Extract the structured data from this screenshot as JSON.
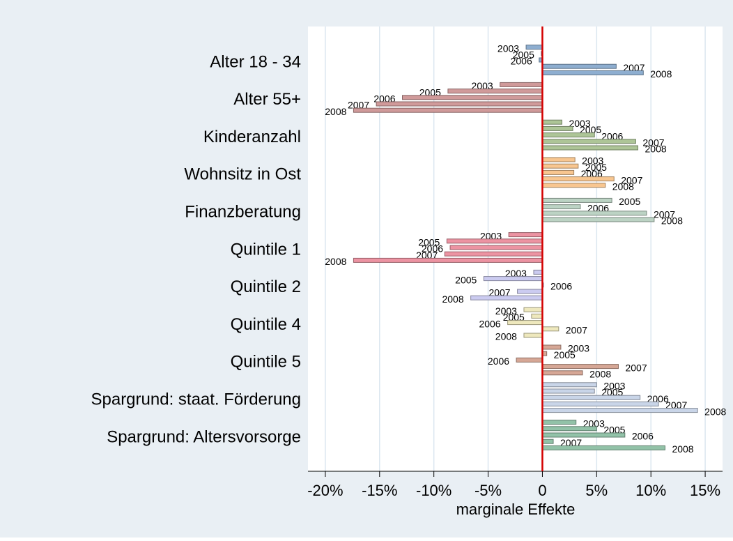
{
  "chart_data": {
    "type": "hbar-grouped",
    "xlabel": "marginale Effekte",
    "xlim": [
      -21.6,
      16.6
    ],
    "xticks": [
      {
        "value": -20,
        "label": "-20%"
      },
      {
        "value": -15,
        "label": "-15%"
      },
      {
        "value": -10,
        "label": "-10%"
      },
      {
        "value": -5,
        "label": "-5%"
      },
      0,
      {
        "value": 5,
        "label": "5%"
      },
      {
        "value": 10,
        "label": "10%"
      },
      {
        "value": 15,
        "label": "15%"
      }
    ],
    "grid": true,
    "refline": {
      "value": 0,
      "color": "#d40000"
    },
    "groups": [
      {
        "name": "Alter 18 - 34",
        "color": "#8eaed0",
        "labels": [
          "2003",
          "2005",
          "2006",
          "2007",
          "2008"
        ],
        "values": [
          -1.5,
          -0.1,
          -0.3,
          6.8,
          9.3
        ]
      },
      {
        "name": "Alter 55+",
        "color": "#d09a9a",
        "labels": [
          "2003",
          "2005",
          "2006",
          "2007",
          "2008"
        ],
        "values": [
          -3.9,
          -8.7,
          -12.9,
          -15.3,
          -17.4
        ]
      },
      {
        "name": "Kinderanzahl",
        "color": "#adc597",
        "labels": [
          "2003",
          "2005",
          "2006",
          "2007",
          "2008"
        ],
        "values": [
          1.8,
          2.8,
          4.8,
          8.6,
          8.8
        ]
      },
      {
        "name": "Wohnsitz in Ost",
        "color": "#f8c690",
        "labels": [
          "2003",
          "2005",
          "2006",
          "2007",
          "2008"
        ],
        "values": [
          3.0,
          3.3,
          2.9,
          6.6,
          5.8
        ]
      },
      {
        "name": "Finanzberatung",
        "color": "#bcd3c4",
        "labels": [
          "2005",
          "2006",
          "2007",
          "2008"
        ],
        "values": [
          6.4,
          3.5,
          9.6,
          10.3
        ]
      },
      {
        "name": "Quintile 1",
        "color": "#ec93a2",
        "labels": [
          "2003",
          "2005",
          "2006",
          "2007",
          "2008"
        ],
        "values": [
          -3.1,
          -8.8,
          -8.5,
          -9.0,
          -17.4
        ]
      },
      {
        "name": "Quintile 2",
        "color": "#cbcbf0",
        "labels": [
          "2003",
          "2005",
          "2006",
          "2007",
          "2008"
        ],
        "values": [
          -0.8,
          -5.4,
          0.1,
          -2.3,
          -6.6
        ]
      },
      {
        "name": "Quintile 4",
        "color": "#eee8bd",
        "labels": [
          "2003",
          "2005",
          "2006",
          "2007",
          "2008"
        ],
        "values": [
          -1.7,
          -1.0,
          -3.2,
          1.5,
          -1.7
        ]
      },
      {
        "name": "Quintile 5",
        "color": "#d6a796",
        "labels": [
          "2003",
          "2005",
          "2006",
          "2007",
          "2008"
        ],
        "values": [
          1.7,
          0.4,
          -2.4,
          7.0,
          3.7
        ]
      },
      {
        "name": "Spargrund: staat. Förderung",
        "color": "#c9d5e8",
        "labels": [
          "2003",
          "2005",
          "2006",
          "2007",
          "2008"
        ],
        "values": [
          5.0,
          4.8,
          9.0,
          10.7,
          14.3
        ]
      },
      {
        "name": "Spargrund: Altersvorsorge",
        "color": "#92c2a8",
        "labels": [
          "2003",
          "2005",
          "2006",
          "2007",
          "2008"
        ],
        "values": [
          3.1,
          5.0,
          7.6,
          1.0,
          11.3
        ]
      }
    ]
  }
}
